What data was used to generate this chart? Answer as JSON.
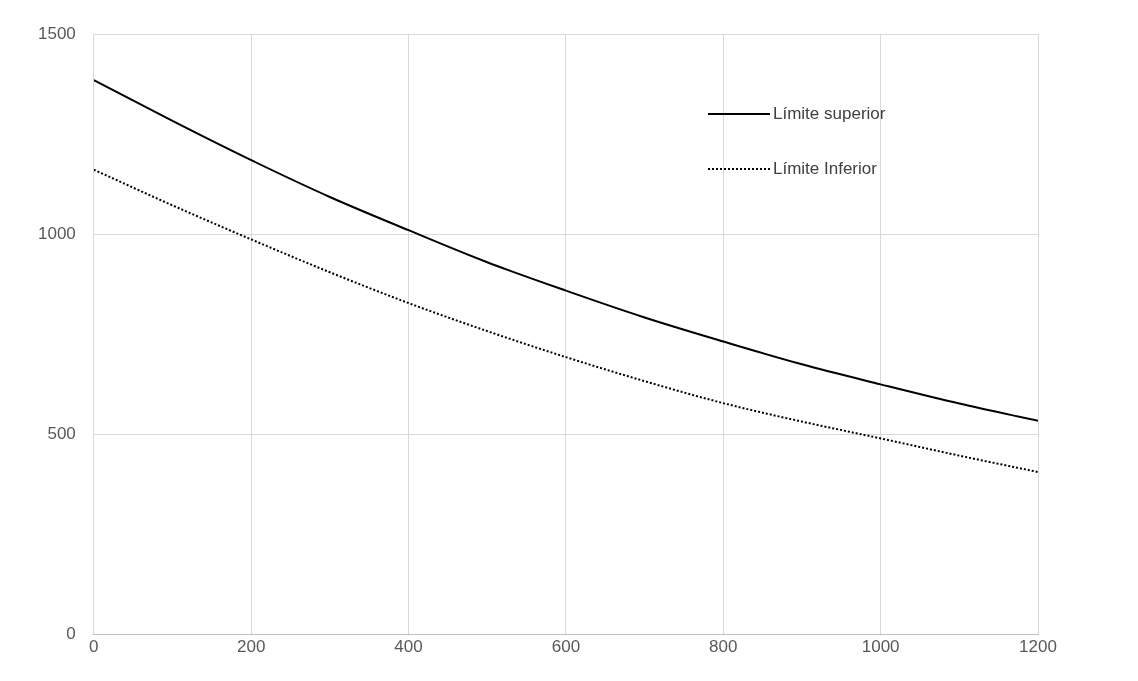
{
  "chart_data": {
    "type": "line",
    "x": [
      0,
      100,
      200,
      300,
      400,
      500,
      600,
      700,
      800,
      900,
      1000,
      1100,
      1200
    ],
    "series": [
      {
        "name": "Límite superior",
        "color": "#000000",
        "line_style": "solid",
        "values": [
          1385,
          1283,
          1185,
          1093,
          1010,
          930,
          859,
          792,
          732,
          675,
          625,
          577,
          534
        ]
      },
      {
        "name": "Límite Inferior",
        "color": "#000000",
        "line_style": "dotted",
        "values": [
          1161,
          1072,
          987,
          905,
          828,
          758,
          693,
          633,
          578,
          532,
          490,
          447,
          406
        ]
      }
    ],
    "xlim": [
      0,
      1200
    ],
    "xticks": [
      0,
      200,
      400,
      600,
      800,
      1000,
      1200
    ],
    "ylim": [
      0,
      1500
    ],
    "yticks": [
      0,
      500,
      1000,
      1500
    ],
    "grid": true,
    "legend": "top right",
    "marker": "none"
  }
}
